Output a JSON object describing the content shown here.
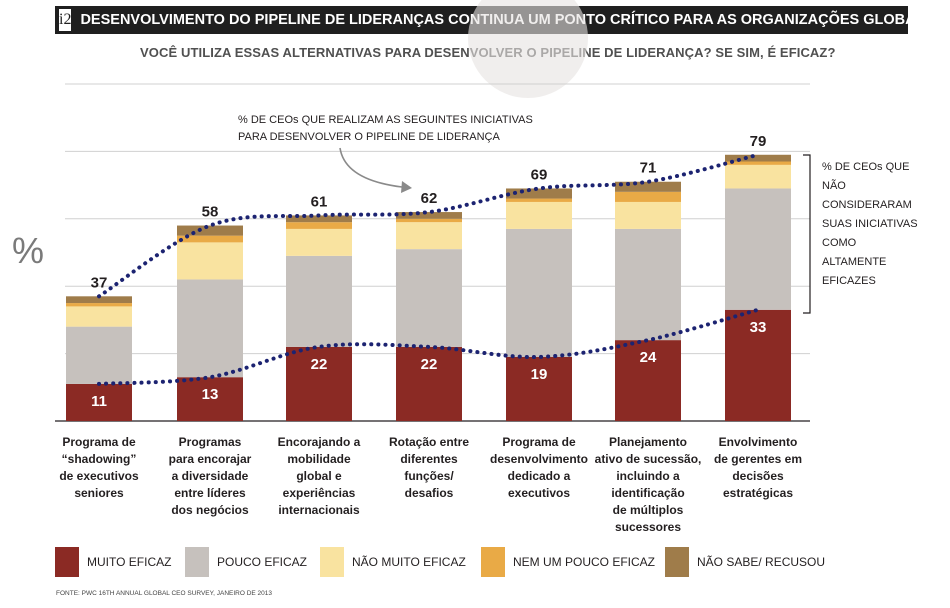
{
  "header": {
    "badge": "i2",
    "title": "DESENVOLVIMENTO DO PIPELINE DE LIDERANÇAS CONTINUA UM PONTO CRÍTICO PARA AS ORGANIZAÇÕES GLOBAIS"
  },
  "subtitle": "VOCÊ UTILIZA ESSAS ALTERNATIVAS PARA DESENVOLVER O PIPELINE DE LIDERANÇA? SE SIM, É EFICAZ?",
  "y_axis_label": "%",
  "annotation_top": "% DE CEOs QUE REALIZAM AS SEGUINTES INICIATIVAS PARA DESENVOLVER O PIPELINE DE LIDERANÇA",
  "annotation_side": "% DE CEOs QUE NÃO CONSIDERARAM SUAS INICIATIVAS COMO ALTAMENTE EFICAZES",
  "source": "FONTE: PWC 16TH ANNUAL GLOBAL CEO SURVEY, JANEIRO DE 2013",
  "colors": {
    "muito": "#8b2a24",
    "pouco": "#c6c1bd",
    "nao_muito": "#f9e3a0",
    "nem": "#e9aa46",
    "nao_sabe": "#9f7c4a",
    "dots": "#1c2371",
    "grid": "#d0d0d0"
  },
  "chart_data": {
    "type": "bar",
    "stacked": true,
    "ylim": [
      0,
      100
    ],
    "grid": true,
    "categories": [
      "Programa de\n“shadowing”\nde executivos\nseniores",
      "Programas\npara encorajar\na diversidade\nentre líderes\ndos negócios",
      "Encorajando a\nmobilidade\nglobal e\nexperiências\ninternacionais",
      "Rotação entre\ndiferentes\nfunções/\ndesafios",
      "Programa de\ndesenvolvimento\ndedicado a\nexecutivos",
      "Planejamento\nativo de sucessão,\nincluindo a\nidentificação\nde múltiplos\nsucessores",
      "Envolvimento\nde gerentes em\ndecisões\nestratégicas"
    ],
    "totals": [
      37,
      58,
      61,
      62,
      69,
      71,
      79
    ],
    "series": [
      {
        "name": "MUITO EFICAZ",
        "color_key": "muito",
        "values": [
          11,
          13,
          22,
          22,
          19,
          24,
          33
        ]
      },
      {
        "name": "POUCO EFICAZ",
        "color_key": "pouco",
        "values": [
          17,
          29,
          27,
          29,
          38,
          33,
          36
        ]
      },
      {
        "name": "NÃO MUITO EFICAZ",
        "color_key": "nao_muito",
        "values": [
          6,
          11,
          8,
          8,
          8,
          8,
          7
        ]
      },
      {
        "name": "NEM UM POUCO EFICAZ",
        "color_key": "nem",
        "values": [
          1,
          2,
          2,
          1,
          1,
          3,
          1
        ]
      },
      {
        "name": "NÃO SABE/ RECUSOU",
        "color_key": "nao_sabe",
        "values": [
          2,
          3,
          2,
          2,
          3,
          3,
          2
        ]
      }
    ]
  }
}
